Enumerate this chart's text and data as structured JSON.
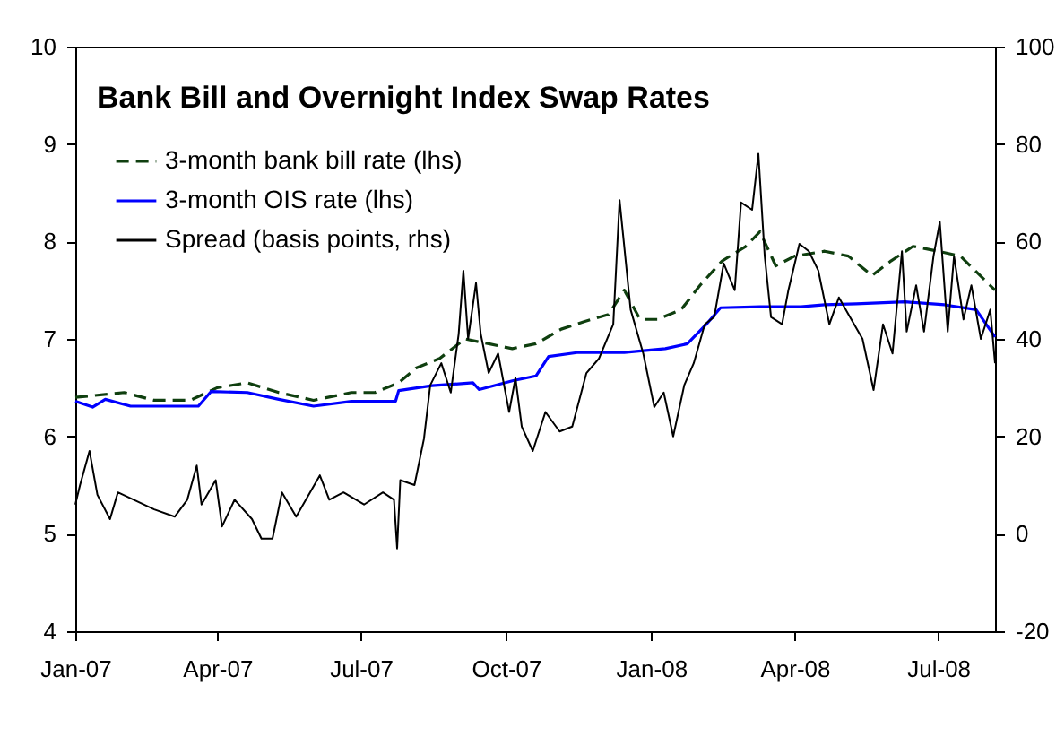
{
  "chart_data": {
    "type": "line",
    "title": "Bank Bill and Overnight Index Swap Rates",
    "xlim": [
      "2007-01-01",
      "2008-08-06"
    ],
    "xticks": [
      {
        "value": "2007-01-01",
        "label": "Jan-07"
      },
      {
        "value": "2007-04-01",
        "label": "Apr-07"
      },
      {
        "value": "2007-07-01",
        "label": "Jul-07"
      },
      {
        "value": "2007-10-01",
        "label": "Oct-07"
      },
      {
        "value": "2008-01-01",
        "label": "Jan-08"
      },
      {
        "value": "2008-04-01",
        "label": "Apr-08"
      },
      {
        "value": "2008-07-01",
        "label": "Jul-08"
      }
    ],
    "ylim": [
      4,
      10
    ],
    "yticks": [
      4,
      5,
      6,
      7,
      8,
      9,
      10
    ],
    "y2lim": [
      -20,
      100
    ],
    "y2ticks": [
      -20,
      0,
      20,
      40,
      60,
      80,
      100
    ],
    "legend": "top left",
    "grid": false,
    "series": [
      {
        "name": "3-month bank bill rate (lhs)",
        "color": "#0f3f0f",
        "line_style": "dashed",
        "x": [
          "2007-01-01",
          "2007-02-01",
          "2007-02-20",
          "2007-03-15",
          "2007-04-01",
          "2007-04-20",
          "2007-05-10",
          "2007-06-01",
          "2007-06-25",
          "2007-07-10",
          "2007-07-25",
          "2007-08-05",
          "2007-08-20",
          "2007-09-05",
          "2007-09-20",
          "2007-10-05",
          "2007-10-20",
          "2007-11-05",
          "2007-11-20",
          "2007-12-05",
          "2007-12-15",
          "2007-12-25",
          "2008-01-05",
          "2008-01-20",
          "2008-02-01",
          "2008-02-15",
          "2008-03-01",
          "2008-03-10",
          "2008-03-20",
          "2008-04-01",
          "2008-04-20",
          "2008-05-05",
          "2008-05-20",
          "2008-06-01",
          "2008-06-15",
          "2008-07-01",
          "2008-07-15",
          "2008-08-06"
        ],
        "values": [
          6.4,
          6.45,
          6.37,
          6.37,
          6.5,
          6.55,
          6.45,
          6.37,
          6.45,
          6.45,
          6.55,
          6.7,
          6.8,
          7.0,
          6.95,
          6.9,
          6.95,
          7.1,
          7.18,
          7.25,
          7.5,
          7.2,
          7.2,
          7.3,
          7.55,
          7.8,
          7.95,
          8.1,
          7.75,
          7.85,
          7.9,
          7.85,
          7.65,
          7.8,
          7.95,
          7.9,
          7.85,
          7.5
        ]
      },
      {
        "name": "3-month OIS rate (lhs)",
        "color": "#0000ff",
        "line_style": "solid",
        "x": [
          "2007-01-01",
          "2007-01-12",
          "2007-01-20",
          "2007-02-05",
          "2007-03-20",
          "2007-03-28",
          "2007-04-20",
          "2007-05-10",
          "2007-06-01",
          "2007-06-25",
          "2007-07-23",
          "2007-07-25",
          "2007-08-15",
          "2007-09-10",
          "2007-09-14",
          "2007-10-05",
          "2007-10-20",
          "2007-10-28",
          "2007-11-15",
          "2007-12-15",
          "2008-01-10",
          "2008-01-24",
          "2008-02-05",
          "2008-02-14",
          "2008-03-10",
          "2008-04-05",
          "2008-04-20",
          "2008-05-10",
          "2008-06-10",
          "2008-07-05",
          "2008-07-25",
          "2008-08-06"
        ],
        "values": [
          6.36,
          6.3,
          6.38,
          6.31,
          6.31,
          6.46,
          6.45,
          6.38,
          6.31,
          6.36,
          6.36,
          6.47,
          6.52,
          6.55,
          6.48,
          6.57,
          6.62,
          6.82,
          6.86,
          6.86,
          6.9,
          6.95,
          7.15,
          7.32,
          7.33,
          7.33,
          7.35,
          7.36,
          7.38,
          7.35,
          7.3,
          7.02
        ]
      },
      {
        "name": "Spread (basis points, rhs)",
        "color": "#000000",
        "line_style": "solid",
        "axis": "y2",
        "x": [
          "2007-01-01",
          "2007-01-04",
          "2007-01-10",
          "2007-01-15",
          "2007-01-23",
          "2007-01-28",
          "2007-02-07",
          "2007-02-20",
          "2007-03-05",
          "2007-03-13",
          "2007-03-19",
          "2007-03-22",
          "2007-03-31",
          "2007-04-04",
          "2007-04-12",
          "2007-04-23",
          "2007-04-29",
          "2007-05-06",
          "2007-05-12",
          "2007-05-21",
          "2007-06-05",
          "2007-06-11",
          "2007-06-20",
          "2007-07-03",
          "2007-07-15",
          "2007-07-22",
          "2007-07-24",
          "2007-07-26",
          "2007-08-04",
          "2007-08-10",
          "2007-08-14",
          "2007-08-21",
          "2007-08-27",
          "2007-09-01",
          "2007-09-04",
          "2007-09-07",
          "2007-09-12",
          "2007-09-15",
          "2007-09-20",
          "2007-09-26",
          "2007-10-03",
          "2007-10-07",
          "2007-10-11",
          "2007-10-18",
          "2007-10-26",
          "2007-11-04",
          "2007-11-12",
          "2007-11-21",
          "2007-11-29",
          "2007-12-08",
          "2007-12-12",
          "2007-12-19",
          "2007-12-27",
          "2008-01-03",
          "2008-01-09",
          "2008-01-15",
          "2008-01-22",
          "2008-01-28",
          "2008-02-04",
          "2008-02-10",
          "2008-02-16",
          "2008-02-23",
          "2008-02-27",
          "2008-03-05",
          "2008-03-09",
          "2008-03-13",
          "2008-03-17",
          "2008-03-24",
          "2008-03-28",
          "2008-04-04",
          "2008-04-10",
          "2008-04-16",
          "2008-04-23",
          "2008-04-29",
          "2008-05-06",
          "2008-05-14",
          "2008-05-21",
          "2008-05-27",
          "2008-06-02",
          "2008-06-08",
          "2008-06-11",
          "2008-06-17",
          "2008-06-22",
          "2008-06-28",
          "2008-07-02",
          "2008-07-07",
          "2008-07-11",
          "2008-07-17",
          "2008-07-22",
          "2008-07-28",
          "2008-08-03",
          "2008-08-06"
        ],
        "values": [
          6,
          10,
          17,
          8,
          3,
          8.5,
          7,
          5,
          3.5,
          7,
          14,
          6,
          11,
          1.5,
          7,
          3,
          -1,
          -1,
          8.5,
          3.5,
          12,
          7,
          8.5,
          6,
          8.5,
          7,
          -3,
          11,
          10,
          19.5,
          30.5,
          35,
          29,
          41,
          54,
          40,
          51.5,
          41,
          33,
          37,
          25,
          32,
          22,
          17,
          25,
          21,
          22,
          33,
          36,
          43,
          68.5,
          46,
          37,
          26,
          29,
          20,
          30.5,
          35,
          43,
          44.5,
          55.5,
          50,
          68,
          66.5,
          78,
          57,
          44.5,
          43,
          50,
          59.5,
          58,
          54,
          43,
          48.5,
          44.5,
          40,
          29.5,
          43,
          37,
          58,
          41.5,
          51,
          41.5,
          57,
          64,
          41.5,
          57,
          44,
          51,
          40,
          46,
          35
        ]
      }
    ]
  }
}
